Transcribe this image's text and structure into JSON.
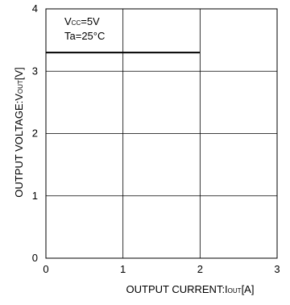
{
  "chart_data": {
    "type": "line",
    "xlabel": {
      "main": "OUTPUT CURRENT:I",
      "sub": "OUT",
      "unit": "[A]"
    },
    "ylabel": {
      "main": "OUTPUT VOLTAGE:V",
      "sub": "OUT",
      "unit": "[V]"
    },
    "xlim": [
      0,
      3
    ],
    "ylim": [
      0,
      4
    ],
    "x_ticks": [
      "0",
      "1",
      "2",
      "3"
    ],
    "y_ticks": [
      "0",
      "1",
      "2",
      "3",
      "4"
    ],
    "grid": true,
    "annotations": [
      {
        "main": "V",
        "sub": "CC",
        "rest": "=5V"
      },
      {
        "main": "Ta=25°C"
      }
    ],
    "series": [
      {
        "x": [
          0,
          2
        ],
        "y": [
          3.3,
          3.3
        ],
        "color": "#000000"
      }
    ]
  }
}
